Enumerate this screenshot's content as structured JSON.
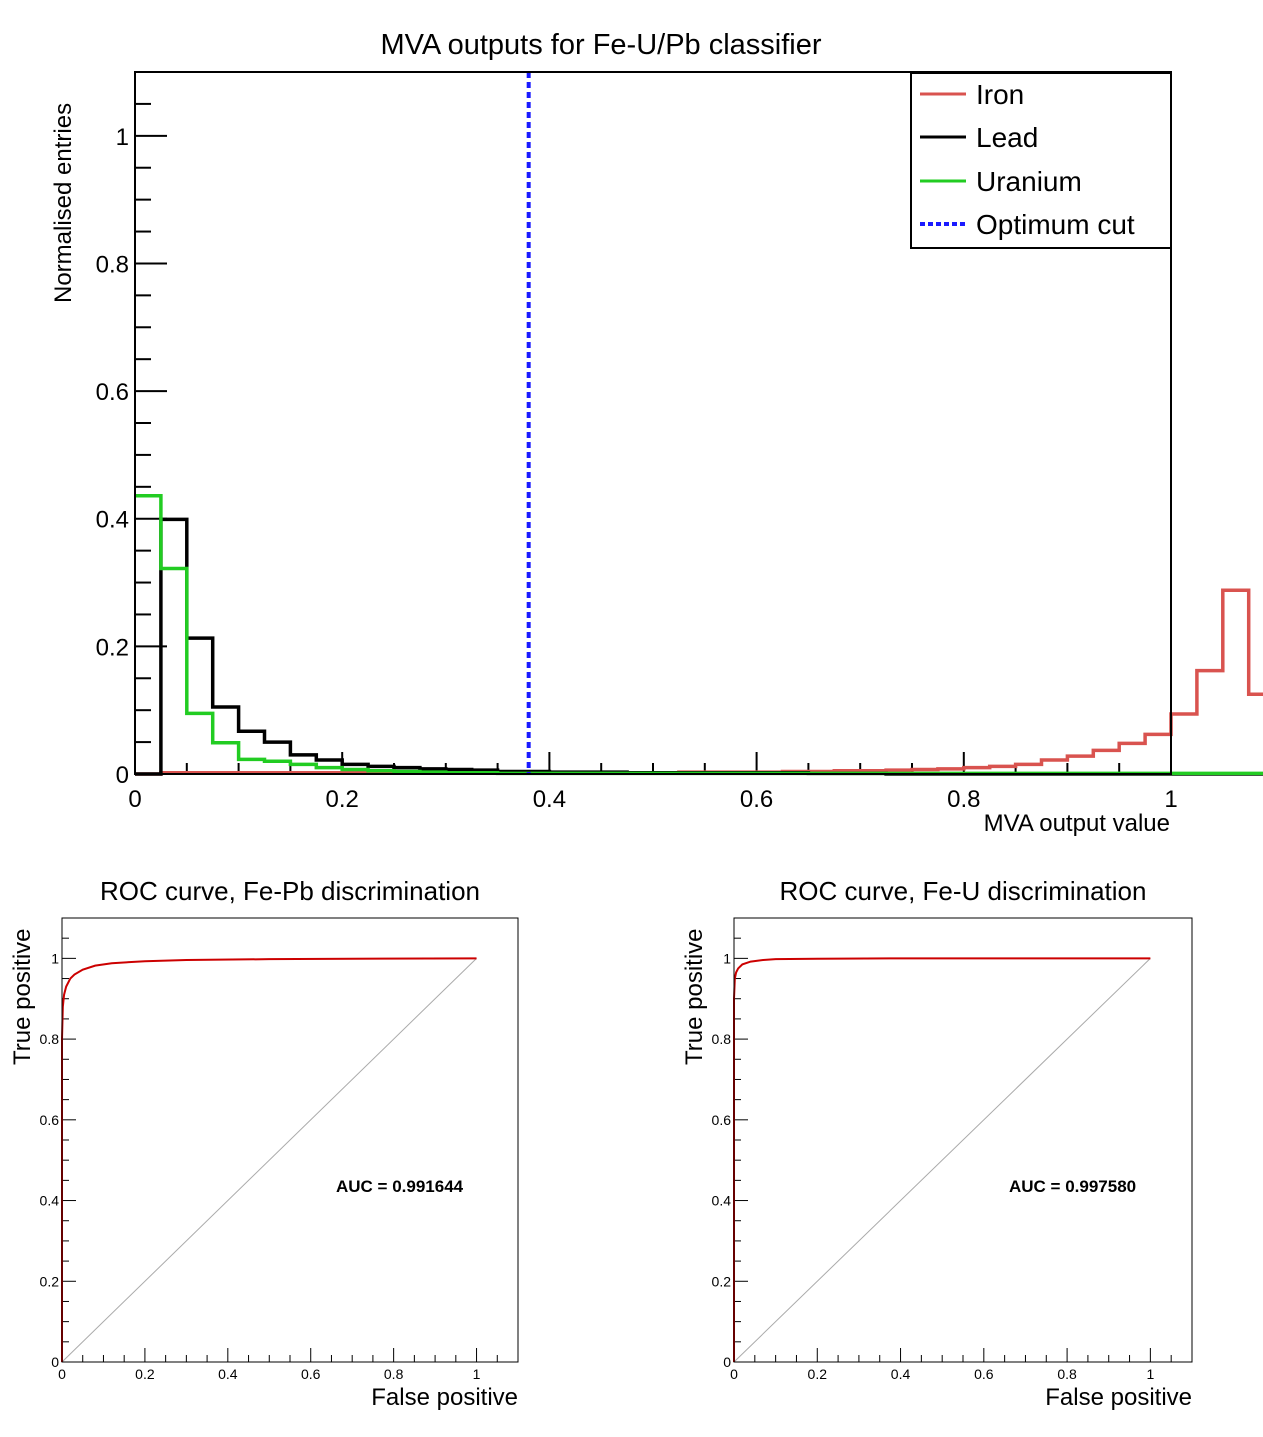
{
  "chart_data": [
    {
      "type": "histogram",
      "title": "MVA outputs for Fe-U/Pb classifier",
      "xlabel": "MVA output value",
      "ylabel": "Normalised entries",
      "xlim": [
        0,
        1
      ],
      "ylim": [
        0,
        1.1
      ],
      "grid": false,
      "legend_position": "top-right",
      "x_ticks": [
        "0",
        "0.2",
        "0.4",
        "0.6",
        "0.8",
        "1"
      ],
      "y_ticks": [
        "0",
        "0.2",
        "0.4",
        "0.6",
        "0.8",
        "1"
      ],
      "bin_width": 0.025,
      "bin_edges_start": 0,
      "series": [
        {
          "name": "Iron",
          "color": "#d9534f",
          "values": [
            0,
            0.002,
            0.002,
            0.002,
            0.002,
            0.002,
            0.002,
            0.002,
            0.002,
            0.002,
            0.002,
            0.002,
            0.002,
            0.002,
            0.002,
            0.002,
            0.002,
            0.002,
            0.002,
            0.002,
            0.002,
            0.003,
            0.003,
            0.003,
            0.003,
            0.004,
            0.004,
            0.005,
            0.005,
            0.006,
            0.007,
            0.008,
            0.01,
            0.012,
            0.015,
            0.022,
            0.028,
            0.037,
            0.048,
            0.062,
            0.094,
            0.162,
            0.288,
            0.125,
            0
          ]
        },
        {
          "name": "Lead",
          "color": "#000000",
          "values": [
            0,
            0.399,
            0.213,
            0.105,
            0.067,
            0.05,
            0.03,
            0.022,
            0.015,
            0.012,
            0.01,
            0.008,
            0.007,
            0.006,
            0.004,
            0.004,
            0.003,
            0.003,
            0.003,
            0.002,
            0.002,
            0.002,
            0.002,
            0.002,
            0.002,
            0.002,
            0.001,
            0.001,
            0.001,
            0,
            0,
            0,
            0,
            0,
            0,
            0,
            0,
            0,
            0,
            0,
            0,
            0,
            0,
            0,
            0
          ]
        },
        {
          "name": "Uranium",
          "color": "#22cc22",
          "values": [
            0.436,
            0.322,
            0.095,
            0.049,
            0.023,
            0.02,
            0.015,
            0.01,
            0.007,
            0.005,
            0.004,
            0.003,
            0.002,
            0.002,
            0.001,
            0.001,
            0.001,
            0.001,
            0.001,
            0.001,
            0.001,
            0.001,
            0.001,
            0.001,
            0.001,
            0.001,
            0.001,
            0.001,
            0.001,
            0.001,
            0.001,
            0.001,
            0.001,
            0.001,
            0.001,
            0.001,
            0.001,
            0.001,
            0.001,
            0.001,
            0.001,
            0.001,
            0.001,
            0.001,
            0.001
          ]
        }
      ],
      "cut_line": {
        "name": "Optimum cut",
        "x": 0.38,
        "color": "#1a1aff"
      }
    },
    {
      "type": "line",
      "title": "ROC curve, Fe-Pb discrimination",
      "xlabel": "False positive",
      "ylabel": "True positive",
      "xlim": [
        0,
        1.1
      ],
      "ylim": [
        0,
        1.1
      ],
      "x_ticks": [
        "0",
        "0.2",
        "0.4",
        "0.6",
        "0.8",
        "1"
      ],
      "y_ticks": [
        "0",
        "0.2",
        "0.4",
        "0.6",
        "0.8",
        "1"
      ],
      "annotation": "AUC = 0.991644",
      "curve_color": "#cc0000",
      "diagonal_color": "#aaaaaa",
      "x": [
        0,
        0,
        0.002,
        0.005,
        0.01,
        0.02,
        0.03,
        0.05,
        0.08,
        0.12,
        0.2,
        0.3,
        0.5,
        0.7,
        1.0
      ],
      "y": [
        0,
        0.8,
        0.88,
        0.91,
        0.93,
        0.95,
        0.96,
        0.972,
        0.982,
        0.988,
        0.993,
        0.996,
        0.998,
        0.999,
        1.0
      ]
    },
    {
      "type": "line",
      "title": "ROC curve, Fe-U discrimination",
      "xlabel": "False positive",
      "ylabel": "True positive",
      "xlim": [
        0,
        1.1
      ],
      "ylim": [
        0,
        1.1
      ],
      "x_ticks": [
        "0",
        "0.2",
        "0.4",
        "0.6",
        "0.8",
        "1"
      ],
      "y_ticks": [
        "0",
        "0.2",
        "0.4",
        "0.6",
        "0.8",
        "1"
      ],
      "annotation": "AUC = 0.997580",
      "curve_color": "#cc0000",
      "diagonal_color": "#aaaaaa",
      "x": [
        0,
        0,
        0.002,
        0.005,
        0.01,
        0.02,
        0.04,
        0.07,
        0.1,
        0.2,
        0.4,
        0.7,
        1.0
      ],
      "y": [
        0,
        0.9,
        0.95,
        0.965,
        0.975,
        0.985,
        0.992,
        0.996,
        0.998,
        0.999,
        1.0,
        1.0,
        1.0
      ]
    }
  ]
}
